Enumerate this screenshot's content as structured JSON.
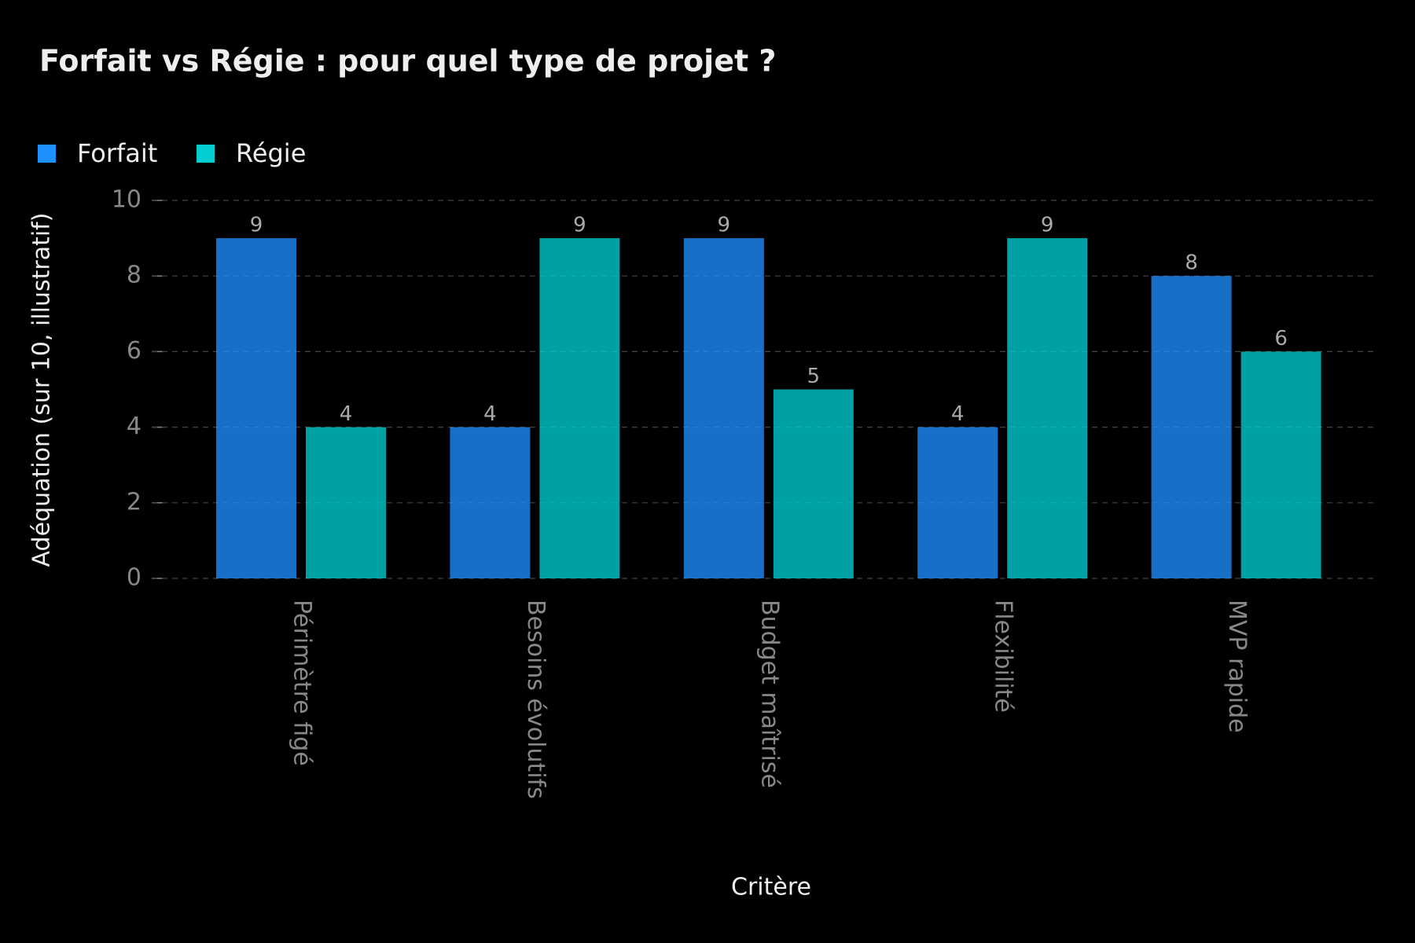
{
  "chart_data": {
    "type": "bar",
    "title": "Forfait vs Régie : pour quel type de projet ?",
    "x_label": "Critère",
    "y_label": "Adéquation (sur 10, illustratif)",
    "categories": [
      "Périmètre figé",
      "Besoins évolutifs",
      "Budget maîtrisé",
      "Flexibilité",
      "MVP rapide"
    ],
    "series": [
      {
        "name": "Forfait",
        "color": "#1e90ff",
        "values": [
          9,
          4,
          9,
          4,
          8
        ]
      },
      {
        "name": "Régie",
        "color": "#00ced1",
        "values": [
          4,
          9,
          5,
          9,
          6
        ]
      }
    ],
    "ylim": [
      0,
      10
    ],
    "yticks": [
      0,
      2,
      4,
      6,
      8,
      10
    ],
    "grid": true,
    "legend": "upper left"
  }
}
